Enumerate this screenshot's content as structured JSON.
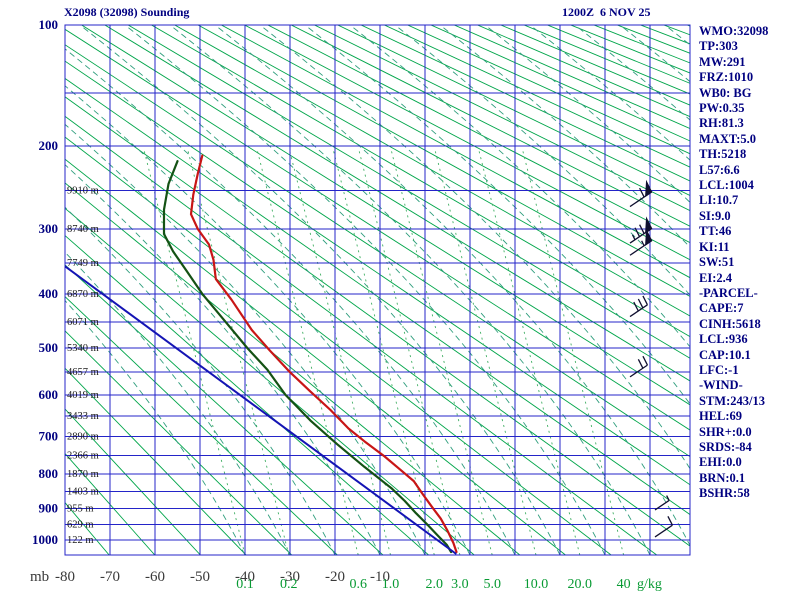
{
  "header": {
    "title": "X2098 (32098) Sounding",
    "datetime": "1200Z  6 NOV 25"
  },
  "stats_panel": [
    "WMO:32098",
    "TP:303",
    "MW:291",
    "FRZ:1010",
    "WB0: BG",
    "PW:0.35",
    "RH:81.3",
    "MAXT:5.0",
    "TH:5218",
    "L57:6.6",
    "LCL:1004",
    "LI:10.7",
    "SI:9.0",
    "TT:46",
    "KI:11",
    "SW:51",
    "EI:2.4",
    "-PARCEL-",
    "CAPE:7",
    "CINH:5618",
    "LCL:936",
    "CAP:10.1",
    "LFC:-1",
    "-WIND-",
    "STM:243/13",
    "HEL:69",
    "SHR+:0.0",
    "SRDS:-84",
    "EHI:0.0",
    "BRN:0.1",
    "BSHR:58"
  ],
  "chart_data": {
    "type": "line",
    "diagram": "stuve-sounding",
    "title": "X2098 (32098) Sounding",
    "pressure_unit": "mb",
    "pressure_ticks": [
      100,
      200,
      300,
      400,
      500,
      600,
      700,
      800,
      900,
      1000
    ],
    "pressure_range": [
      100,
      1050
    ],
    "isobar_step_mb": 50,
    "temp_ticks_c": [
      -80,
      -70,
      -60,
      -50,
      -40,
      -30,
      -20,
      -10
    ],
    "isotherm_step_c": 10,
    "temp_range_c": [
      -80,
      58
    ],
    "mixing_ratio_values": [
      0.1,
      0.2,
      0.6,
      1.0,
      2.0,
      3.0,
      5.0,
      10.0,
      20.0,
      40
    ],
    "mixing_ratio_unit": "g/kg",
    "dry_adiabats_theta_k": {
      "min": 190,
      "max": 640,
      "step": 10
    },
    "height_labels": [
      [
        250,
        "9910 m"
      ],
      [
        300,
        "8740 m"
      ],
      [
        350,
        "7749 m"
      ],
      [
        400,
        "6870 m"
      ],
      [
        450,
        "6071 m"
      ],
      [
        500,
        "5340 m"
      ],
      [
        550,
        "4657 m"
      ],
      [
        600,
        "4019 m"
      ],
      [
        650,
        "3433 m"
      ],
      [
        700,
        "2890 m"
      ],
      [
        750,
        "2366 m"
      ],
      [
        800,
        "1870 m"
      ],
      [
        850,
        "1403 m"
      ],
      [
        900,
        "955 m"
      ],
      [
        950,
        "629 m"
      ],
      [
        1000,
        "122 m"
      ]
    ],
    "series": [
      {
        "name": "temperature",
        "color": "#c81616",
        "points": [
          [
            210,
            -49.5
          ],
          [
            230,
            -50.5
          ],
          [
            255,
            -51.5
          ],
          [
            280,
            -52
          ],
          [
            300,
            -50.5
          ],
          [
            322,
            -48
          ],
          [
            345,
            -47
          ],
          [
            375,
            -46.5
          ],
          [
            410,
            -43
          ],
          [
            465,
            -38.5
          ],
          [
            505,
            -34.5
          ],
          [
            550,
            -30
          ],
          [
            592,
            -25.5
          ],
          [
            635,
            -21
          ],
          [
            680,
            -17
          ],
          [
            712,
            -13.5
          ],
          [
            752,
            -9
          ],
          [
            788,
            -5.5
          ],
          [
            820,
            -2.5
          ],
          [
            858,
            -0.5
          ],
          [
            895,
            1.5
          ],
          [
            932,
            3.5
          ],
          [
            970,
            5
          ],
          [
            1010,
            6.3
          ],
          [
            1040,
            7
          ]
        ]
      },
      {
        "name": "dewpoint",
        "color": "#145214",
        "points": [
          [
            216,
            -55
          ],
          [
            242,
            -57
          ],
          [
            274,
            -58
          ],
          [
            307,
            -58
          ],
          [
            332,
            -56
          ],
          [
            362,
            -53
          ],
          [
            400,
            -49.5
          ],
          [
            448,
            -44.5
          ],
          [
            500,
            -39.5
          ],
          [
            545,
            -35
          ],
          [
            600,
            -31
          ],
          [
            660,
            -25.5
          ],
          [
            720,
            -19.5
          ],
          [
            780,
            -13.5
          ],
          [
            840,
            -7.5
          ],
          [
            878,
            -4.5
          ],
          [
            915,
            -2
          ],
          [
            950,
            0.5
          ],
          [
            985,
            2.8
          ],
          [
            1015,
            4.8
          ],
          [
            1040,
            5.8
          ]
        ]
      },
      {
        "name": "parcel-line",
        "color": "#1414b4",
        "points": [
          [
            355,
            -80
          ],
          [
            1045,
            6.8
          ]
        ]
      }
    ],
    "wind_barbs": [
      {
        "p": 270,
        "speed": 60
      },
      {
        "p": 320,
        "speed": 75
      },
      {
        "p": 338,
        "speed": 55
      },
      {
        "p": 440,
        "speed": 30
      },
      {
        "p": 560,
        "speed": 20
      },
      {
        "p": 905,
        "speed": 5
      },
      {
        "p": 990,
        "speed": 10
      }
    ],
    "colors": {
      "grid_blue": "#2424c8",
      "dry_adiabat_green": "#00a54a",
      "moist_adiabat_teal": "#2f9e7d",
      "mixing_ratio_green": "#3fae62",
      "barb_dark": "#101030"
    }
  }
}
